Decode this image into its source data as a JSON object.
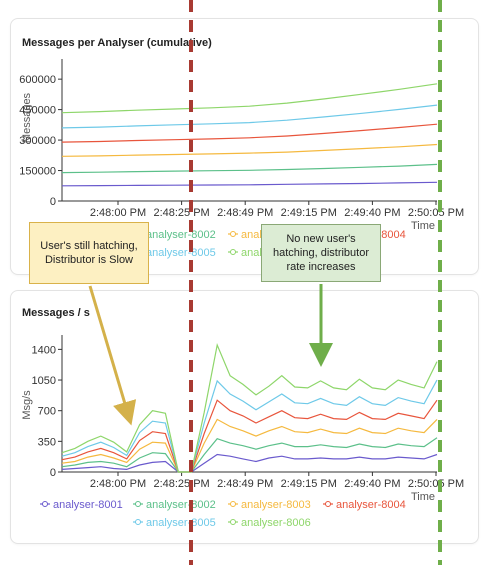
{
  "charts": {
    "top": {
      "title": "Messages per Analyser (cumulative)",
      "ylabel": "Messages",
      "xlabel": "Time"
    },
    "bottom": {
      "title": "Messages / s",
      "ylabel": "Msg/s",
      "xlabel": "Time"
    }
  },
  "annotations": {
    "left_note": "User's still hatching, Distributor is Slow",
    "right_note": "No new user's hatching, distributor rate increases"
  },
  "colors": {
    "analyser-8001": "#6a5acd",
    "analyser-8002": "#5cc08a",
    "analyser-8003": "#f5b93f",
    "analyser-8004": "#e8553c",
    "analyser-8005": "#6ec9e8",
    "analyser-8006": "#8ed66a",
    "red_marker": "#a83a32",
    "green_marker": "#6fae4a"
  },
  "chart_data": [
    {
      "type": "line",
      "title": "Messages per Analyser (cumulative)",
      "ylabel": "Messages",
      "xlabel": "Time",
      "ylim": [
        0,
        650000
      ],
      "yticks": [
        "0",
        "150000",
        "300000",
        "450000",
        "600000"
      ],
      "xticks": [
        "2:48:00 PM",
        "2:48:25 PM",
        "2:48:49 PM",
        "2:49:15 PM",
        "2:49:40 PM",
        "2:50:05 PM"
      ],
      "x": [
        0,
        1,
        2,
        3,
        4,
        5,
        6,
        7,
        8,
        9,
        10
      ],
      "series": [
        {
          "name": "analyser-8001",
          "values": [
            75000,
            76000,
            77000,
            78000,
            79000,
            80000,
            82000,
            84000,
            86000,
            89000,
            92000
          ]
        },
        {
          "name": "analyser-8002",
          "values": [
            140000,
            142000,
            145000,
            147000,
            149000,
            151000,
            155000,
            160000,
            166000,
            172000,
            180000
          ]
        },
        {
          "name": "analyser-8003",
          "values": [
            220000,
            222000,
            226000,
            229000,
            232000,
            236000,
            241000,
            249000,
            258000,
            267000,
            278000
          ]
        },
        {
          "name": "analyser-8004",
          "values": [
            290000,
            293000,
            298000,
            302000,
            306000,
            311000,
            320000,
            333000,
            347000,
            362000,
            378000
          ]
        },
        {
          "name": "analyser-8005",
          "values": [
            360000,
            364000,
            370000,
            375000,
            380000,
            386000,
            398000,
            414000,
            432000,
            451000,
            472000
          ]
        },
        {
          "name": "analyser-8006",
          "values": [
            435000,
            440000,
            447000,
            453000,
            459000,
            467000,
            482000,
            503000,
            526000,
            550000,
            577000
          ]
        }
      ],
      "legend": "bottom"
    },
    {
      "type": "line",
      "title": "Messages / s",
      "ylabel": "Msg/s",
      "xlabel": "Time",
      "ylim": [
        0,
        1450
      ],
      "yticks": [
        "0",
        "350",
        "700",
        "1050",
        "1400"
      ],
      "xticks": [
        "2:48:00 PM",
        "2:48:25 PM",
        "2:48:49 PM",
        "2:49:15 PM",
        "2:49:40 PM",
        "2:50:05 PM"
      ],
      "x": [
        0,
        1,
        2,
        3,
        4,
        5,
        6,
        7,
        8,
        9,
        10,
        11,
        12,
        13,
        14,
        15,
        16,
        17,
        18,
        19,
        20,
        21,
        22,
        23,
        24,
        25,
        26,
        27,
        28,
        29
      ],
      "series": [
        {
          "name": "analyser-8001",
          "values": [
            30,
            40,
            50,
            60,
            40,
            30,
            80,
            110,
            120,
            0,
            0,
            100,
            200,
            180,
            150,
            120,
            160,
            180,
            150,
            150,
            160,
            150,
            150,
            170,
            150,
            150,
            170,
            160,
            150,
            200
          ]
        },
        {
          "name": "analyser-8002",
          "values": [
            60,
            80,
            110,
            120,
            100,
            60,
            160,
            220,
            210,
            0,
            0,
            200,
            380,
            330,
            300,
            260,
            300,
            330,
            290,
            290,
            310,
            290,
            280,
            320,
            290,
            280,
            320,
            300,
            290,
            390
          ]
        },
        {
          "name": "analyser-8003",
          "values": [
            100,
            120,
            170,
            200,
            160,
            110,
            260,
            340,
            330,
            0,
            0,
            330,
            600,
            520,
            470,
            410,
            470,
            520,
            460,
            450,
            490,
            450,
            440,
            500,
            450,
            440,
            500,
            470,
            450,
            600
          ]
        },
        {
          "name": "analyser-8004",
          "values": [
            140,
            170,
            230,
            270,
            220,
            150,
            360,
            460,
            440,
            0,
            0,
            440,
            820,
            700,
            640,
            560,
            630,
            700,
            620,
            610,
            660,
            610,
            600,
            680,
            610,
            600,
            670,
            640,
            610,
            820
          ]
        },
        {
          "name": "analyser-8005",
          "values": [
            180,
            220,
            290,
            340,
            280,
            190,
            450,
            580,
            560,
            0,
            0,
            560,
            1040,
            890,
            810,
            710,
            800,
            890,
            790,
            780,
            840,
            780,
            760,
            860,
            780,
            760,
            850,
            810,
            780,
            1050
          ]
        },
        {
          "name": "analyser-8006",
          "values": [
            220,
            270,
            350,
            410,
            340,
            230,
            540,
            700,
            670,
            0,
            0,
            680,
            1450,
            1100,
            1000,
            880,
            980,
            1100,
            970,
            960,
            1040,
            960,
            940,
            1060,
            960,
            940,
            1050,
            1000,
            960,
            1260
          ]
        }
      ],
      "legend": "bottom"
    }
  ]
}
